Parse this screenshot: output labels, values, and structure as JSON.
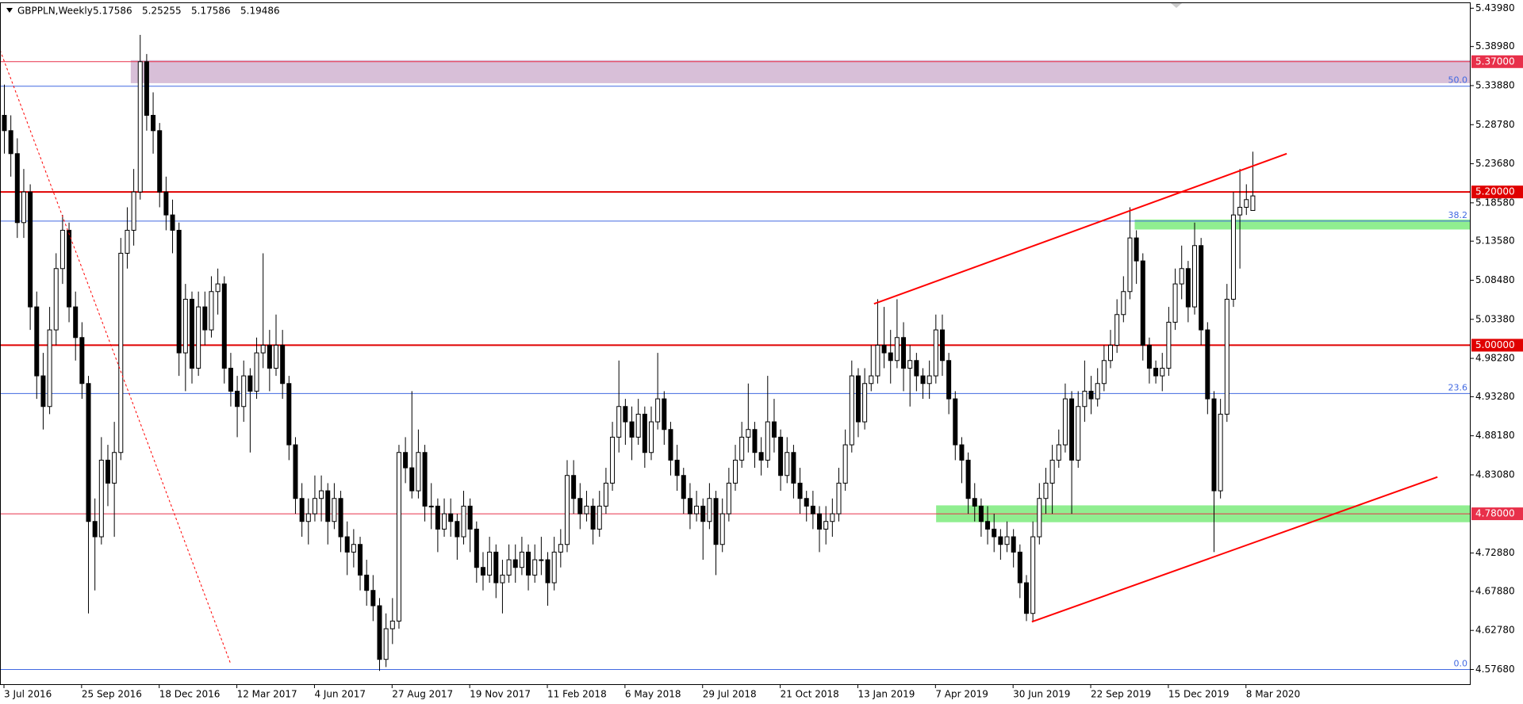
{
  "chart_data": {
    "type": "candlestick",
    "title": "GBPPLN,Weekly",
    "last_ohlc": [
      5.17586,
      5.25255,
      5.17586,
      5.19486
    ],
    "ylim": [
      4.5566,
      5.4474
    ],
    "yticks": [
      {
        "value": 5.4398,
        "label": "5.43980"
      },
      {
        "value": 5.3898,
        "label": "5.38980"
      },
      {
        "value": 5.3388,
        "label": "5.33880"
      },
      {
        "value": 5.2878,
        "label": "5.28780"
      },
      {
        "value": 5.2368,
        "label": "5.23680"
      },
      {
        "value": 5.1858,
        "label": "5.18580"
      },
      {
        "value": 5.1358,
        "label": "5.13580"
      },
      {
        "value": 5.0848,
        "label": "5.08480"
      },
      {
        "value": 5.0338,
        "label": "5.03380"
      },
      {
        "value": 4.9828,
        "label": "4.98280"
      },
      {
        "value": 4.9328,
        "label": "4.93280"
      },
      {
        "value": 4.8818,
        "label": "4.88180"
      },
      {
        "value": 4.8308,
        "label": "4.83080"
      },
      {
        "value": 4.7288,
        "label": "4.72880"
      },
      {
        "value": 4.6788,
        "label": "4.67880"
      },
      {
        "value": 4.6278,
        "label": "4.62780"
      },
      {
        "value": 4.5768,
        "label": "4.57680"
      }
    ],
    "xtick_labels": [
      "3 Jul 2016",
      "25 Sep 2016",
      "18 Dec 2016",
      "12 Mar 2017",
      "4 Jun 2017",
      "27 Aug 2017",
      "19 Nov 2017",
      "11 Feb 2018",
      "6 May 2018",
      "29 Jul 2018",
      "21 Oct 2018",
      "13 Jan 2019",
      "7 Apr 2019",
      "30 Jun 2019",
      "22 Sep 2019",
      "15 Dec 2019",
      "8 Mar 2020"
    ],
    "xtick_every": 12,
    "hlines": [
      {
        "value": 5.37,
        "label": "5.37000",
        "color": "#e8304a"
      },
      {
        "value": 5.2,
        "label": "5.20000",
        "color": "#e00000"
      },
      {
        "value": 5.0,
        "label": "5.00000",
        "color": "#e00000"
      },
      {
        "value": 4.78,
        "label": "4.78000",
        "color": "#e8304a"
      }
    ],
    "fib_levels": [
      {
        "value": 5.338,
        "label": "50.0"
      },
      {
        "value": 5.162,
        "label": "38.2"
      },
      {
        "value": 4.937,
        "label": "23.6"
      },
      {
        "value": 4.5768,
        "label": "0.0"
      }
    ],
    "zones": [
      {
        "start": 19.6,
        "top": 5.372,
        "bottom": 5.342,
        "color": "#d8bfd8"
      },
      {
        "start": 174.8,
        "top": 5.164,
        "bottom": 5.151,
        "color": "#90ee90"
      },
      {
        "start": 144.1,
        "top": 4.791,
        "bottom": 4.769,
        "color": "#90ee90"
      }
    ],
    "trendlines": [
      {
        "x": [
          134.5,
          198.3
        ],
        "y": [
          5.054,
          5.25
        ],
        "dashed": false
      },
      {
        "x": [
          158.9,
          221.6
        ],
        "y": [
          4.639,
          4.828
        ],
        "dashed": false
      },
      {
        "x": [
          -0.6,
          35.1
        ],
        "y": [
          5.385,
          4.583
        ],
        "dashed": true
      }
    ],
    "ohlc": [
      [
        5.3,
        5.34,
        5.25,
        5.28
      ],
      [
        5.28,
        5.3,
        5.22,
        5.25
      ],
      [
        5.25,
        5.27,
        5.14,
        5.16
      ],
      [
        5.16,
        5.23,
        5.14,
        5.2
      ],
      [
        5.2,
        5.21,
        5.02,
        5.05
      ],
      [
        5.05,
        5.07,
        4.93,
        4.96
      ],
      [
        4.96,
        4.99,
        4.89,
        4.92
      ],
      [
        4.92,
        5.05,
        4.91,
        5.02
      ],
      [
        5.02,
        5.12,
        5.0,
        5.1
      ],
      [
        5.1,
        5.17,
        5.08,
        5.15
      ],
      [
        5.15,
        5.16,
        5.03,
        5.05
      ],
      [
        5.05,
        5.07,
        4.98,
        5.01
      ],
      [
        5.01,
        5.03,
        4.93,
        4.95
      ],
      [
        4.95,
        4.96,
        4.65,
        4.77
      ],
      [
        4.77,
        4.8,
        4.68,
        4.75
      ],
      [
        4.75,
        4.88,
        4.74,
        4.85
      ],
      [
        4.85,
        4.87,
        4.79,
        4.82
      ],
      [
        4.82,
        4.9,
        4.75,
        4.86
      ],
      [
        4.86,
        5.14,
        4.85,
        5.12
      ],
      [
        5.12,
        5.18,
        5.1,
        5.15
      ],
      [
        5.15,
        5.23,
        5.13,
        5.2
      ],
      [
        5.2,
        5.405,
        5.19,
        5.37
      ],
      [
        5.37,
        5.38,
        5.28,
        5.3
      ],
      [
        5.3,
        5.33,
        5.25,
        5.28
      ],
      [
        5.28,
        5.29,
        5.18,
        5.2
      ],
      [
        5.2,
        5.22,
        5.15,
        5.17
      ],
      [
        5.17,
        5.19,
        5.12,
        5.15
      ],
      [
        5.15,
        5.16,
        4.96,
        4.99
      ],
      [
        4.99,
        5.08,
        4.94,
        5.06
      ],
      [
        5.06,
        5.07,
        4.95,
        4.97
      ],
      [
        4.97,
        5.07,
        4.96,
        5.05
      ],
      [
        5.05,
        5.07,
        5.0,
        5.02
      ],
      [
        5.02,
        5.09,
        5.01,
        5.07
      ],
      [
        5.07,
        5.1,
        5.04,
        5.08
      ],
      [
        5.08,
        5.09,
        4.95,
        4.97
      ],
      [
        4.97,
        4.99,
        4.92,
        4.94
      ],
      [
        4.94,
        4.96,
        4.88,
        4.92
      ],
      [
        4.92,
        4.98,
        4.9,
        4.96
      ],
      [
        4.96,
        4.97,
        4.86,
        4.94
      ],
      [
        4.94,
        5.01,
        4.93,
        4.99
      ],
      [
        4.99,
        5.12,
        4.97,
        5.0
      ],
      [
        5.0,
        5.02,
        4.94,
        4.97
      ],
      [
        4.97,
        5.04,
        4.96,
        5.0
      ],
      [
        5.0,
        5.02,
        4.93,
        4.95
      ],
      [
        4.95,
        4.96,
        4.85,
        4.87
      ],
      [
        4.87,
        4.88,
        4.78,
        4.8
      ],
      [
        4.8,
        4.82,
        4.75,
        4.77
      ],
      [
        4.77,
        4.8,
        4.74,
        4.78
      ],
      [
        4.78,
        4.83,
        4.77,
        4.8
      ],
      [
        4.8,
        4.83,
        4.77,
        4.81
      ],
      [
        4.81,
        4.82,
        4.74,
        4.77
      ],
      [
        4.77,
        4.82,
        4.76,
        4.8
      ],
      [
        4.8,
        4.81,
        4.73,
        4.75
      ],
      [
        4.75,
        4.77,
        4.7,
        4.73
      ],
      [
        4.73,
        4.76,
        4.71,
        4.74
      ],
      [
        4.74,
        4.75,
        4.68,
        4.7
      ],
      [
        4.7,
        4.72,
        4.66,
        4.68
      ],
      [
        4.68,
        4.7,
        4.64,
        4.66
      ],
      [
        4.66,
        4.67,
        4.575,
        4.59
      ],
      [
        4.59,
        4.65,
        4.58,
        4.63
      ],
      [
        4.63,
        4.67,
        4.61,
        4.64
      ],
      [
        4.64,
        4.87,
        4.63,
        4.86
      ],
      [
        4.86,
        4.88,
        4.82,
        4.84
      ],
      [
        4.84,
        4.94,
        4.8,
        4.81
      ],
      [
        4.81,
        4.89,
        4.8,
        4.86
      ],
      [
        4.86,
        4.87,
        4.77,
        4.79
      ],
      [
        4.79,
        4.82,
        4.76,
        4.79
      ],
      [
        4.79,
        4.8,
        4.73,
        4.76
      ],
      [
        4.76,
        4.8,
        4.75,
        4.78
      ],
      [
        4.78,
        4.8,
        4.75,
        4.77
      ],
      [
        4.77,
        4.78,
        4.72,
        4.75
      ],
      [
        4.75,
        4.81,
        4.74,
        4.79
      ],
      [
        4.79,
        4.8,
        4.73,
        4.76
      ],
      [
        4.76,
        4.77,
        4.69,
        4.71
      ],
      [
        4.71,
        4.73,
        4.68,
        4.7
      ],
      [
        4.7,
        4.75,
        4.69,
        4.73
      ],
      [
        4.73,
        4.74,
        4.67,
        4.69
      ],
      [
        4.69,
        4.72,
        4.65,
        4.7
      ],
      [
        4.7,
        4.74,
        4.69,
        4.72
      ],
      [
        4.72,
        4.74,
        4.69,
        4.71
      ],
      [
        4.71,
        4.75,
        4.7,
        4.73
      ],
      [
        4.73,
        4.74,
        4.68,
        4.7
      ],
      [
        4.7,
        4.74,
        4.69,
        4.72
      ],
      [
        4.72,
        4.75,
        4.7,
        4.72
      ],
      [
        4.72,
        4.73,
        4.66,
        4.69
      ],
      [
        4.69,
        4.75,
        4.68,
        4.73
      ],
      [
        4.73,
        4.76,
        4.71,
        4.74
      ],
      [
        4.74,
        4.85,
        4.73,
        4.83
      ],
      [
        4.83,
        4.85,
        4.78,
        4.8
      ],
      [
        4.8,
        4.82,
        4.76,
        4.78
      ],
      [
        4.78,
        4.81,
        4.77,
        4.79
      ],
      [
        4.79,
        4.8,
        4.74,
        4.76
      ],
      [
        4.76,
        4.81,
        4.75,
        4.79
      ],
      [
        4.79,
        4.84,
        4.78,
        4.82
      ],
      [
        4.82,
        4.9,
        4.81,
        4.88
      ],
      [
        4.88,
        4.98,
        4.86,
        4.92
      ],
      [
        4.92,
        4.93,
        4.87,
        4.9
      ],
      [
        4.9,
        4.92,
        4.85,
        4.88
      ],
      [
        4.88,
        4.93,
        4.87,
        4.91
      ],
      [
        4.91,
        4.92,
        4.84,
        4.86
      ],
      [
        4.86,
        4.92,
        4.85,
        4.9
      ],
      [
        4.9,
        4.99,
        4.89,
        4.93
      ],
      [
        4.93,
        4.94,
        4.87,
        4.89
      ],
      [
        4.89,
        4.9,
        4.83,
        4.85
      ],
      [
        4.85,
        4.87,
        4.81,
        4.83
      ],
      [
        4.83,
        4.84,
        4.78,
        4.8
      ],
      [
        4.8,
        4.82,
        4.76,
        4.78
      ],
      [
        4.78,
        4.81,
        4.77,
        4.79
      ],
      [
        4.79,
        4.8,
        4.72,
        4.77
      ],
      [
        4.77,
        4.82,
        4.76,
        4.8
      ],
      [
        4.8,
        4.81,
        4.7,
        4.74
      ],
      [
        4.74,
        4.8,
        4.73,
        4.78
      ],
      [
        4.78,
        4.84,
        4.77,
        4.82
      ],
      [
        4.82,
        4.87,
        4.81,
        4.85
      ],
      [
        4.85,
        4.9,
        4.84,
        4.88
      ],
      [
        4.88,
        4.95,
        4.86,
        4.89
      ],
      [
        4.89,
        4.9,
        4.84,
        4.86
      ],
      [
        4.86,
        4.88,
        4.83,
        4.85
      ],
      [
        4.85,
        4.96,
        4.84,
        4.9
      ],
      [
        4.9,
        4.93,
        4.86,
        4.88
      ],
      [
        4.88,
        4.89,
        4.81,
        4.83
      ],
      [
        4.83,
        4.88,
        4.82,
        4.86
      ],
      [
        4.86,
        4.87,
        4.8,
        4.82
      ],
      [
        4.82,
        4.84,
        4.78,
        4.8
      ],
      [
        4.8,
        4.81,
        4.77,
        4.79
      ],
      [
        4.79,
        4.81,
        4.76,
        4.78
      ],
      [
        4.78,
        4.79,
        4.73,
        4.76
      ],
      [
        4.76,
        4.79,
        4.74,
        4.77
      ],
      [
        4.77,
        4.8,
        4.75,
        4.78
      ],
      [
        4.78,
        4.84,
        4.77,
        4.82
      ],
      [
        4.82,
        4.89,
        4.81,
        4.87
      ],
      [
        4.87,
        4.98,
        4.86,
        4.96
      ],
      [
        4.96,
        4.97,
        4.88,
        4.9
      ],
      [
        4.9,
        4.97,
        4.89,
        4.95
      ],
      [
        4.95,
        5.0,
        4.94,
        4.96
      ],
      [
        4.96,
        5.06,
        4.95,
        5.0
      ],
      [
        5.0,
        5.05,
        4.97,
        4.99
      ],
      [
        4.99,
        5.02,
        4.95,
        4.98
      ],
      [
        4.98,
        5.06,
        4.97,
        5.01
      ],
      [
        5.01,
        5.03,
        4.94,
        4.97
      ],
      [
        4.97,
        5.0,
        4.92,
        4.98
      ],
      [
        4.98,
        4.99,
        4.94,
        4.96
      ],
      [
        4.96,
        4.97,
        4.93,
        4.95
      ],
      [
        4.95,
        4.98,
        4.93,
        4.96
      ],
      [
        4.96,
        5.04,
        4.95,
        5.02
      ],
      [
        5.02,
        5.04,
        4.96,
        4.98
      ],
      [
        4.98,
        4.99,
        4.91,
        4.93
      ],
      [
        4.93,
        4.94,
        4.85,
        4.87
      ],
      [
        4.87,
        4.88,
        4.82,
        4.85
      ],
      [
        4.85,
        4.86,
        4.78,
        4.8
      ],
      [
        4.8,
        4.82,
        4.77,
        4.79
      ],
      [
        4.79,
        4.8,
        4.75,
        4.77
      ],
      [
        4.77,
        4.79,
        4.74,
        4.76
      ],
      [
        4.76,
        4.78,
        4.73,
        4.75
      ],
      [
        4.75,
        4.76,
        4.72,
        4.74
      ],
      [
        4.74,
        4.77,
        4.73,
        4.75
      ],
      [
        4.75,
        4.76,
        4.71,
        4.73
      ],
      [
        4.73,
        4.74,
        4.67,
        4.69
      ],
      [
        4.69,
        4.7,
        4.64,
        4.65
      ],
      [
        4.65,
        4.77,
        4.64,
        4.75
      ],
      [
        4.75,
        4.82,
        4.74,
        4.8
      ],
      [
        4.8,
        4.84,
        4.78,
        4.82
      ],
      [
        4.82,
        4.87,
        4.78,
        4.85
      ],
      [
        4.85,
        4.89,
        4.84,
        4.87
      ],
      [
        4.87,
        4.95,
        4.86,
        4.93
      ],
      [
        4.93,
        4.94,
        4.78,
        4.85
      ],
      [
        4.85,
        4.94,
        4.84,
        4.92
      ],
      [
        4.92,
        4.98,
        4.9,
        4.94
      ],
      [
        4.94,
        4.96,
        4.91,
        4.93
      ],
      [
        4.93,
        4.97,
        4.92,
        4.95
      ],
      [
        4.95,
        5.0,
        4.94,
        4.98
      ],
      [
        4.98,
        5.02,
        4.97,
        5.0
      ],
      [
        5.0,
        5.06,
        4.99,
        5.04
      ],
      [
        5.04,
        5.09,
        5.03,
        5.07
      ],
      [
        5.07,
        5.18,
        5.06,
        5.14
      ],
      [
        5.14,
        5.15,
        5.08,
        5.11
      ],
      [
        5.11,
        5.12,
        4.98,
        5.0
      ],
      [
        5.0,
        5.01,
        4.95,
        4.97
      ],
      [
        4.97,
        4.98,
        4.95,
        4.96
      ],
      [
        4.96,
        4.99,
        4.94,
        4.97
      ],
      [
        4.97,
        5.05,
        4.96,
        5.03
      ],
      [
        5.03,
        5.1,
        5.02,
        5.08
      ],
      [
        5.08,
        5.13,
        5.06,
        5.1
      ],
      [
        5.1,
        5.11,
        5.03,
        5.05
      ],
      [
        5.05,
        5.16,
        5.04,
        5.13
      ],
      [
        5.13,
        5.14,
        5.0,
        5.02
      ],
      [
        5.02,
        5.03,
        4.91,
        4.93
      ],
      [
        4.93,
        4.94,
        4.73,
        4.81
      ],
      [
        4.81,
        4.93,
        4.8,
        4.91
      ],
      [
        4.91,
        5.08,
        4.9,
        5.06
      ],
      [
        5.06,
        5.2,
        5.05,
        5.17
      ],
      [
        5.17,
        5.23,
        5.1,
        5.18
      ],
      [
        5.18,
        5.21,
        5.17,
        5.19
      ],
      [
        5.17586,
        5.25255,
        5.17586,
        5.19486
      ]
    ]
  }
}
